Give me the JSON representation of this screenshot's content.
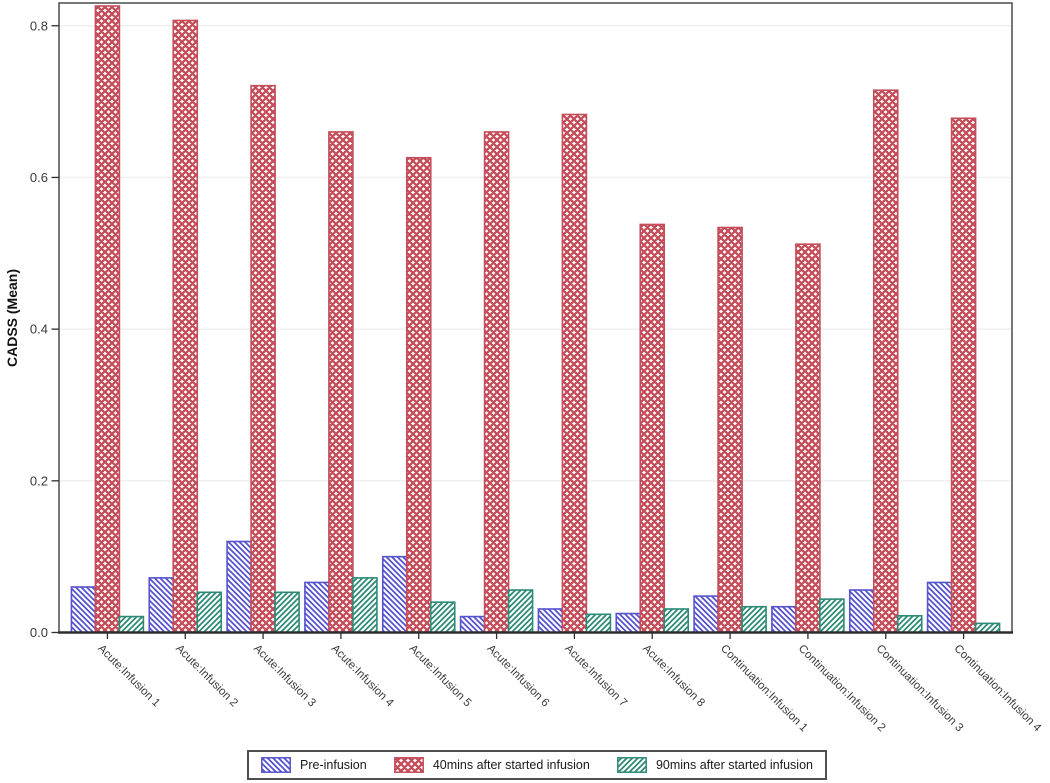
{
  "chart_data": {
    "type": "bar",
    "title": "",
    "xlabel": "",
    "ylabel": "CADSS (Mean)",
    "ylim": [
      0,
      0.83
    ],
    "yticks": [
      0.0,
      0.2,
      0.4,
      0.6,
      0.8
    ],
    "grid": "horizontal-light",
    "legend_position": "bottom-center",
    "categories": [
      "Acute:Infusion 1",
      "Acute:Infusion 2",
      "Acute:Infusion 3",
      "Acute:Infusion 4",
      "Acute:Infusion 5",
      "Acute:Infusion 6",
      "Acute:Infusion 7",
      "Acute:Infusion 8",
      "Continuation:Infusion 1",
      "Continuation:Infusion 2",
      "Continuation:Infusion 3",
      "Continuation:Infusion 4"
    ],
    "series": [
      {
        "name": "Pre-infusion",
        "color": "#5653cd",
        "hatch": "backslash",
        "values": [
          0.06,
          0.072,
          0.12,
          0.066,
          0.1,
          0.021,
          0.031,
          0.025,
          0.048,
          0.034,
          0.056,
          0.066
        ]
      },
      {
        "name": "40mins after started infusion",
        "color": "#c44d59",
        "hatch": "cross",
        "values": [
          0.826,
          0.807,
          0.721,
          0.66,
          0.626,
          0.66,
          0.683,
          0.538,
          0.534,
          0.512,
          0.715,
          0.678
        ]
      },
      {
        "name": "90mins after started infusion",
        "color": "#2e8a76",
        "hatch": "slash",
        "values": [
          0.021,
          0.053,
          0.053,
          0.072,
          0.04,
          0.056,
          0.024,
          0.031,
          0.034,
          0.044,
          0.022,
          0.012
        ]
      }
    ],
    "colors": {
      "frame": "#4b4b4b",
      "axis": "#2e2e2e",
      "gridline": "#efefef",
      "tick_label": "#3a3a3a",
      "axis_title": "#111111"
    }
  }
}
